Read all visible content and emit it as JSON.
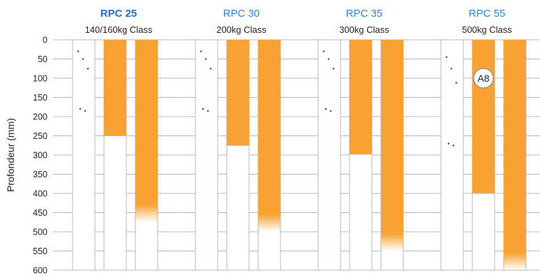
{
  "chart_data": {
    "type": "bar",
    "ylabel": "Profondeur (mm)",
    "ylim": [
      0,
      600
    ],
    "y_ticks": [
      0,
      50,
      100,
      150,
      200,
      250,
      300,
      350,
      400,
      450,
      500,
      550,
      600
    ],
    "y_inverted": true,
    "grid": true,
    "colors": {
      "fill": "#f7a233",
      "grid": "#b8b8b8",
      "title_active": "#1a73c9",
      "title": "#2f86d6",
      "text": "#222222",
      "dots": "#555555"
    },
    "groups": [
      {
        "title": "RPC 25",
        "subtitle": "140/160kg Class",
        "title_bold": true,
        "dots_depth": [
          30,
          50,
          75,
          180,
          185
        ],
        "bars": [
          {
            "depth": 250,
            "fade": false
          },
          {
            "depth": 475,
            "fade": true
          }
        ]
      },
      {
        "title": "RPC 30",
        "subtitle": "200kg Class",
        "title_bold": false,
        "dots_depth": [
          30,
          50,
          75,
          180,
          185
        ],
        "bars": [
          {
            "depth": 275,
            "fade": false
          },
          {
            "depth": 500,
            "fade": true
          }
        ]
      },
      {
        "title": "RPC 35",
        "subtitle": "300kg Class",
        "title_bold": false,
        "dots_depth": [
          30,
          50,
          75,
          180,
          185
        ],
        "bars": [
          {
            "depth": 298,
            "fade": false
          },
          {
            "depth": 550,
            "fade": true
          }
        ]
      },
      {
        "title": "RPC 55",
        "subtitle": "500kg Class",
        "title_bold": false,
        "dots_depth": [
          45,
          75,
          112,
          270,
          275
        ],
        "bars": [
          {
            "depth": 400,
            "fade": false
          },
          {
            "depth": 600,
            "fade": true
          }
        ]
      }
    ],
    "annotations": [
      {
        "text": "A8",
        "group": 3,
        "bar": 0,
        "depth": 100
      }
    ]
  }
}
